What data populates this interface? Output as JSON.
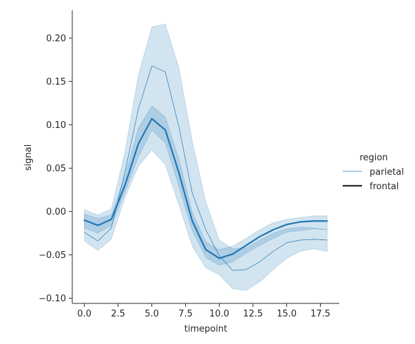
{
  "chart_data": {
    "type": "line",
    "xlabel": "timepoint",
    "ylabel": "signal",
    "xlim": [
      -0.9,
      18.9
    ],
    "ylim": [
      -0.106,
      0.232
    ],
    "xticks": [
      0.0,
      2.5,
      5.0,
      7.5,
      10.0,
      12.5,
      15.0,
      17.5
    ],
    "xtick_labels": [
      "0.0",
      "2.5",
      "5.0",
      "7.5",
      "10.0",
      "12.5",
      "15.0",
      "17.5"
    ],
    "yticks": [
      -0.1,
      -0.05,
      0.0,
      0.05,
      0.1,
      0.15,
      0.2
    ],
    "ytick_labels": [
      "−0.10",
      "−0.05",
      "0.00",
      "0.05",
      "0.10",
      "0.15",
      "0.20"
    ],
    "legend": {
      "title": "region",
      "placement": "right",
      "entries": [
        "parietal",
        "frontal"
      ]
    },
    "grid": false,
    "color": "#1f77b4",
    "x": [
      0,
      1,
      2,
      3,
      4,
      5,
      6,
      7,
      8,
      9,
      10,
      11,
      12,
      13,
      14,
      15,
      16,
      17,
      18
    ],
    "series": [
      {
        "name": "parietal",
        "line_style": "thin",
        "values": [
          -0.024,
          -0.034,
          -0.019,
          0.045,
          0.118,
          0.168,
          0.161,
          0.098,
          0.021,
          -0.021,
          -0.051,
          -0.068,
          -0.067,
          -0.058,
          -0.046,
          -0.036,
          -0.033,
          -0.032,
          -0.033
        ],
        "ci_low": [
          -0.034,
          -0.045,
          -0.032,
          0.016,
          0.052,
          0.071,
          0.054,
          0.008,
          -0.04,
          -0.065,
          -0.073,
          -0.089,
          -0.091,
          -0.081,
          -0.067,
          -0.054,
          -0.046,
          -0.043,
          -0.046
        ],
        "ci_high": [
          0.002,
          -0.004,
          0.003,
          0.068,
          0.157,
          0.213,
          0.216,
          0.166,
          0.081,
          0.011,
          -0.033,
          -0.043,
          -0.042,
          -0.033,
          -0.025,
          -0.02,
          -0.018,
          -0.019,
          -0.021
        ]
      },
      {
        "name": "frontal",
        "line_style": "thick",
        "values": [
          -0.01,
          -0.016,
          -0.009,
          0.03,
          0.078,
          0.107,
          0.094,
          0.045,
          -0.011,
          -0.044,
          -0.054,
          -0.049,
          -0.039,
          -0.029,
          -0.021,
          -0.015,
          -0.012,
          -0.011,
          -0.011
        ],
        "ci_low": [
          -0.019,
          -0.025,
          -0.016,
          0.022,
          0.063,
          0.094,
          0.079,
          0.029,
          -0.022,
          -0.053,
          -0.062,
          -0.058,
          -0.048,
          -0.039,
          -0.031,
          -0.024,
          -0.022,
          -0.02,
          -0.021
        ],
        "ci_high": [
          -0.003,
          -0.008,
          -0.004,
          0.041,
          0.096,
          0.122,
          0.109,
          0.061,
          -0.001,
          -0.035,
          -0.044,
          -0.04,
          -0.031,
          -0.021,
          -0.013,
          -0.009,
          -0.007,
          -0.005,
          -0.005
        ]
      }
    ]
  }
}
